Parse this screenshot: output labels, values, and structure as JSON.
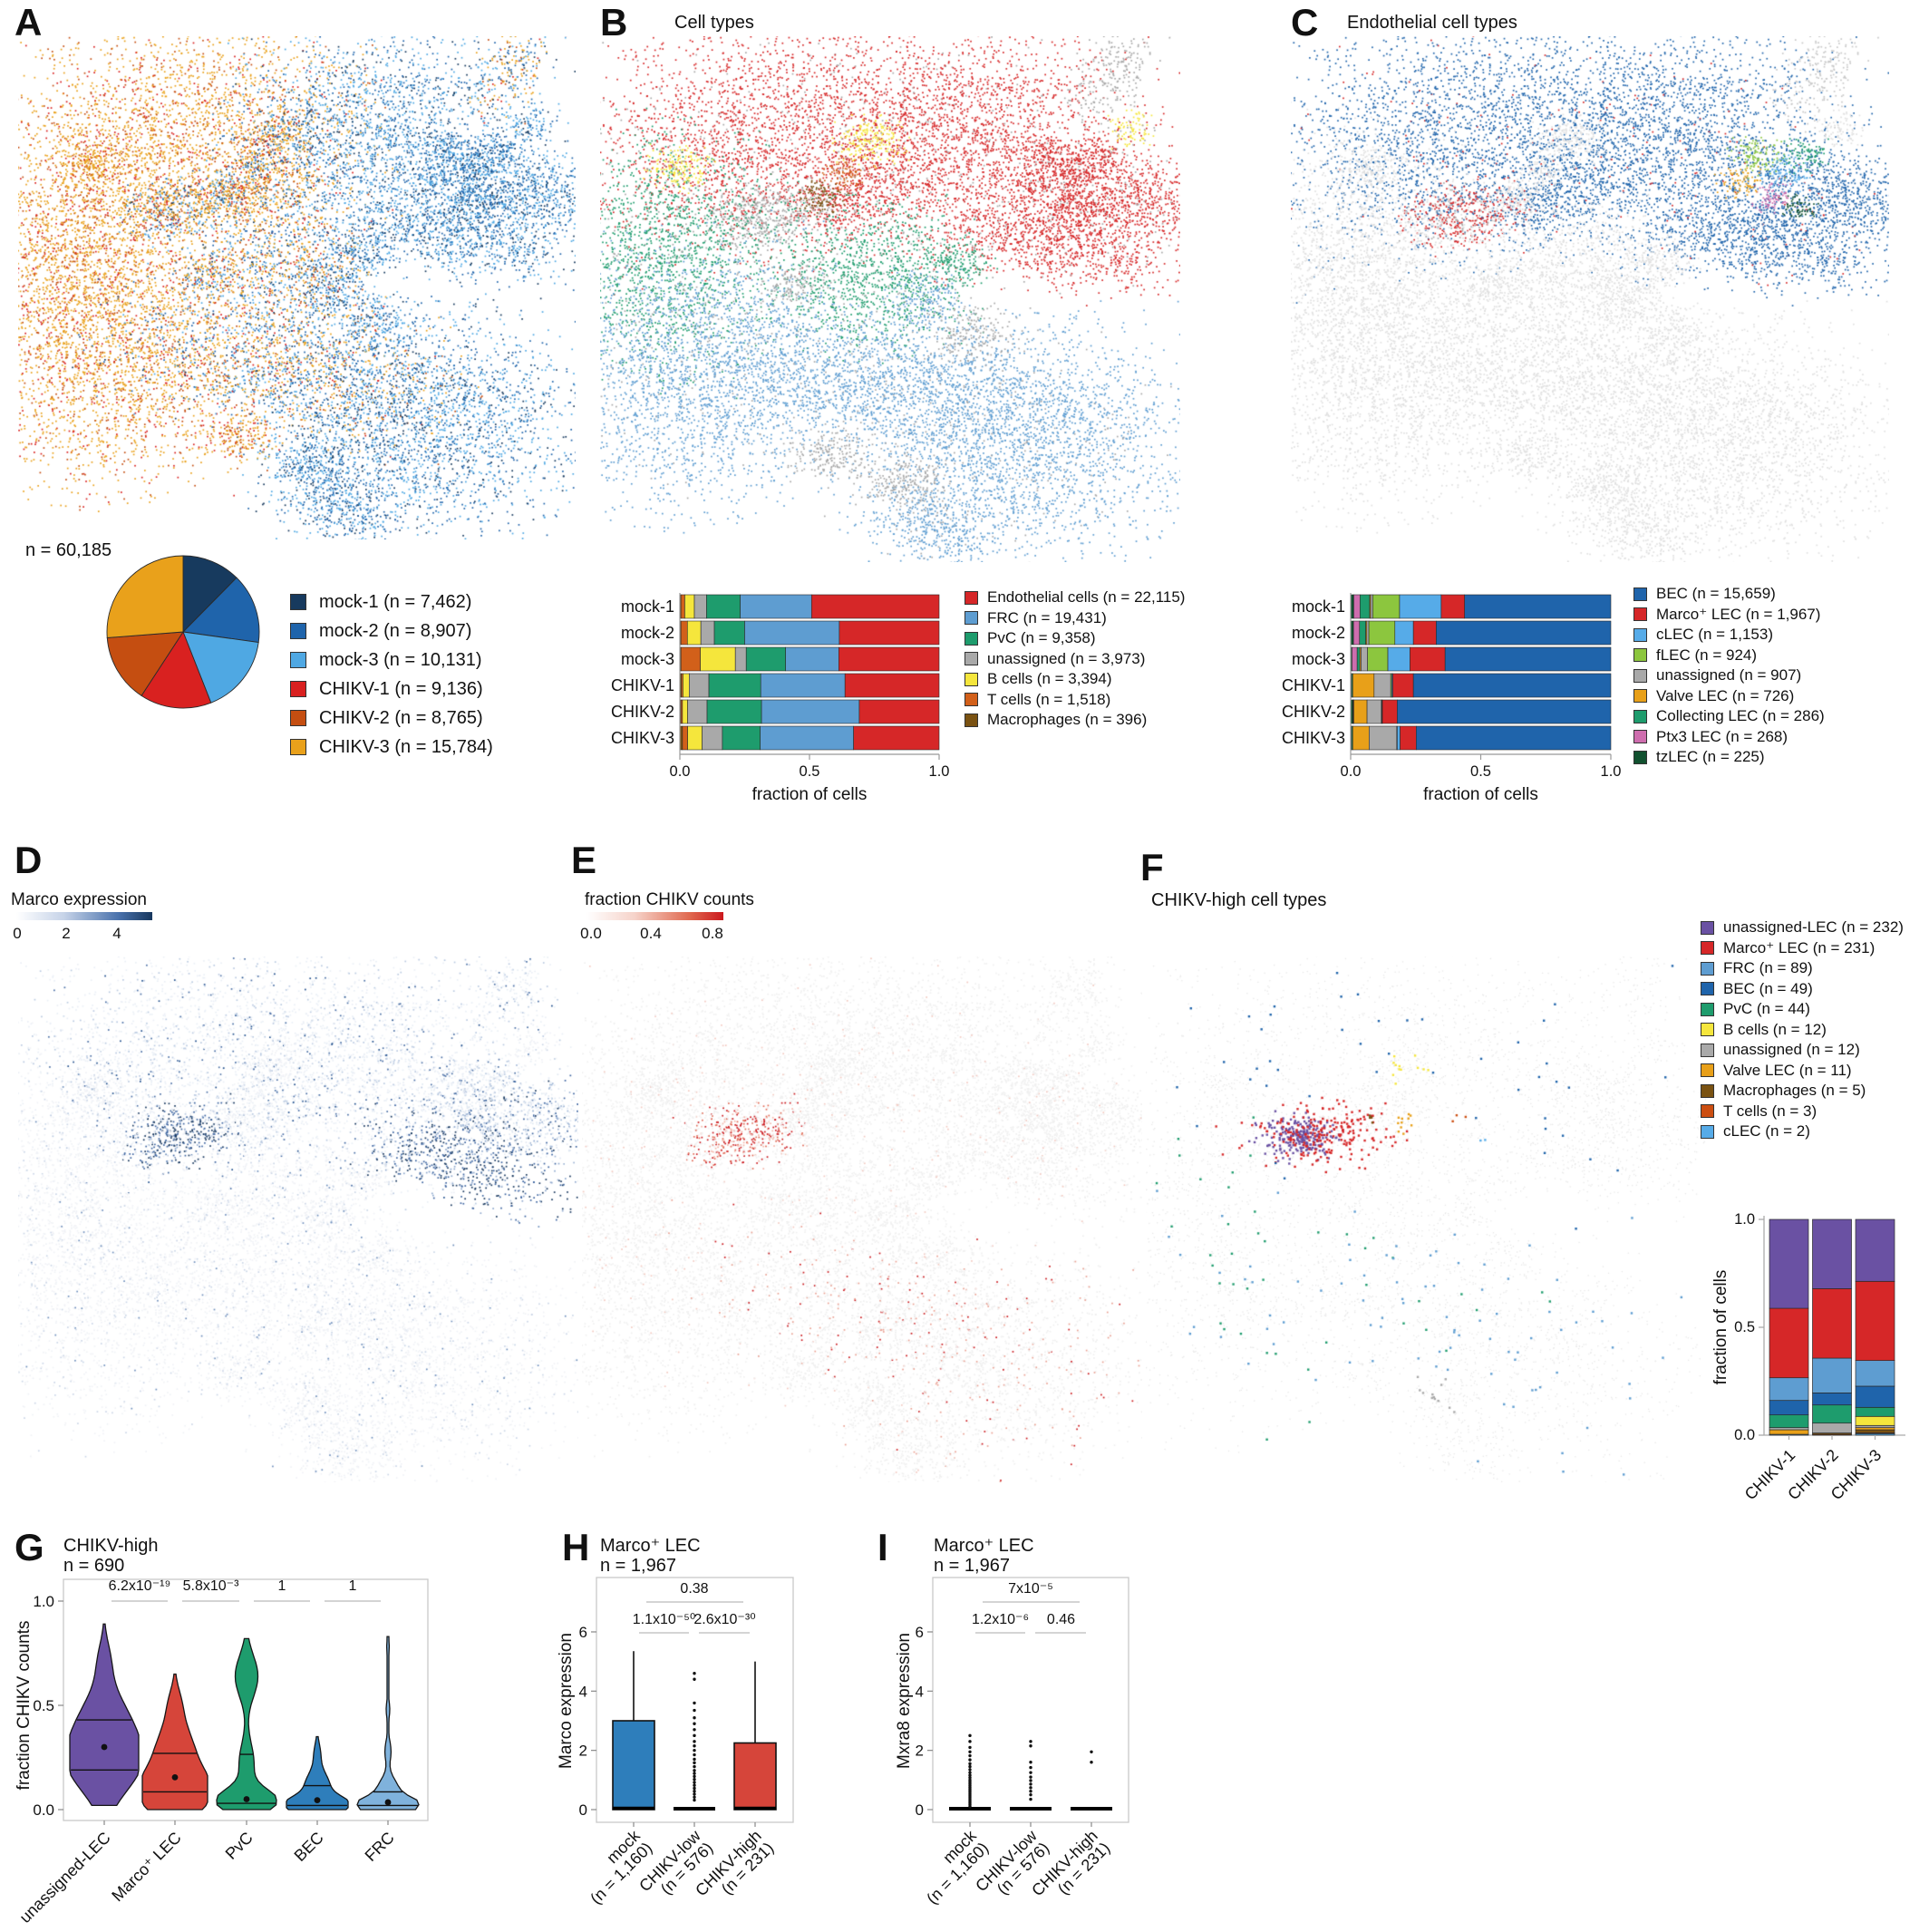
{
  "palette": {
    "mock1": "#173A5E",
    "mock2": "#1F64AB",
    "mock3": "#4FA8E3",
    "chikv1": "#D92120",
    "chikv2": "#C54E11",
    "chikv3": "#E9A11B",
    "endothelial": "#D62728",
    "frc": "#5E9DD1",
    "pvc": "#1E9C6D",
    "unassigned": "#A9A9A9",
    "bcells": "#F5E63C",
    "tcells": "#D2601A",
    "mac": "#7A5212",
    "bec": "#1F64AB",
    "marcoLEC": "#D62728",
    "clec": "#56ABE8",
    "flec": "#8CC63E",
    "valve": "#E8A019",
    "coll": "#1E9C6D",
    "ptx3": "#CE6DAE",
    "tz": "#11512F",
    "unassignedLEC": "#6A51A3",
    "exprBlue": "#17375E",
    "exprRed": "#CB181D",
    "boxBlue": "#2E7EBB",
    "boxRed": "#D6453A",
    "outline": "#E3E3E3"
  },
  "panels": {
    "A": {
      "letter": "A",
      "count_label": "n = 60,185"
    },
    "B": {
      "letter": "B",
      "title": "Cell types"
    },
    "C": {
      "letter": "C",
      "title": "Endothelial cell types"
    },
    "D": {
      "letter": "D",
      "colorbar_title": "Marco expression"
    },
    "E": {
      "letter": "E",
      "colorbar_title": "fraction CHIKV counts"
    },
    "F": {
      "letter": "F",
      "title": "CHIKV-high cell types"
    },
    "G": {
      "letter": "G",
      "title": "CHIKV-high",
      "subtitle": "n = 690"
    },
    "H": {
      "letter": "H",
      "title": "Marco⁺ LEC",
      "subtitle": "n = 1,967"
    },
    "I": {
      "letter": "I",
      "title": "Marco⁺ LEC",
      "subtitle": "n = 1,967"
    }
  },
  "chart_data": [
    {
      "id": "A-pie",
      "type": "pie",
      "title": "n = 60,185",
      "total": 60185,
      "labels": [
        "mock-1",
        "mock-2",
        "mock-3",
        "CHIKV-1",
        "CHIKV-2",
        "CHIKV-3"
      ],
      "values": [
        7462,
        8907,
        10131,
        9136,
        8765,
        15784
      ],
      "colors": [
        "#173A5E",
        "#1F64AB",
        "#4FA8E3",
        "#D92120",
        "#C54E11",
        "#E9A11B"
      ],
      "legend": [
        {
          "label": "mock-1 (n = 7,462)",
          "color": "#173A5E"
        },
        {
          "label": "mock-2 (n = 8,907)",
          "color": "#1F64AB"
        },
        {
          "label": "mock-3 (n = 10,131)",
          "color": "#4FA8E3"
        },
        {
          "label": "CHIKV-1 (n = 9,136)",
          "color": "#D92120"
        },
        {
          "label": "CHIKV-2 (n = 8,765)",
          "color": "#C54E11"
        },
        {
          "label": "CHIKV-3 (n = 15,784)",
          "color": "#E9A11B"
        }
      ]
    },
    {
      "id": "B-bars",
      "type": "bar",
      "orientation": "horizontal",
      "stacked": true,
      "categories": [
        "mock-1",
        "mock-2",
        "mock-3",
        "CHIKV-1",
        "CHIKV-2",
        "CHIKV-3"
      ],
      "xlabel": "fraction of cells",
      "xticks": [
        "0.0",
        "0.5",
        "1.0"
      ],
      "xlim": [
        0,
        1
      ],
      "series": [
        {
          "name": "Macrophages",
          "color": "#7A5212",
          "values": [
            0.004,
            0.004,
            0.004,
            0.006,
            0.004,
            0.01
          ]
        },
        {
          "name": "T cells",
          "color": "#D2601A",
          "values": [
            0.015,
            0.025,
            0.075,
            0.006,
            0.006,
            0.02
          ]
        },
        {
          "name": "B cells",
          "color": "#F5E63C",
          "values": [
            0.037,
            0.052,
            0.135,
            0.024,
            0.02,
            0.056
          ]
        },
        {
          "name": "unassigned",
          "color": "#A9A9A9",
          "values": [
            0.047,
            0.052,
            0.042,
            0.076,
            0.075,
            0.078
          ]
        },
        {
          "name": "PvC",
          "color": "#1E9C6D",
          "values": [
            0.13,
            0.117,
            0.152,
            0.2,
            0.21,
            0.146
          ]
        },
        {
          "name": "FRC",
          "color": "#5E9DD1",
          "values": [
            0.275,
            0.365,
            0.205,
            0.325,
            0.377,
            0.36
          ]
        },
        {
          "name": "Endothelial cells",
          "color": "#D62728",
          "values": [
            0.492,
            0.385,
            0.387,
            0.363,
            0.308,
            0.33
          ]
        }
      ],
      "legend": [
        {
          "label": "Endothelial cells (n = 22,115)",
          "color": "#D62728"
        },
        {
          "label": "FRC (n = 19,431)",
          "color": "#5E9DD1"
        },
        {
          "label": "PvC (n = 9,358)",
          "color": "#1E9C6D"
        },
        {
          "label": "unassigned (n = 3,973)",
          "color": "#A9A9A9"
        },
        {
          "label": "B cells (n = 3,394)",
          "color": "#F5E63C"
        },
        {
          "label": "T cells (n = 1,518)",
          "color": "#D2601A"
        },
        {
          "label": "Macrophages (n = 396)",
          "color": "#7A5212"
        }
      ]
    },
    {
      "id": "C-bars",
      "type": "bar",
      "orientation": "horizontal",
      "stacked": true,
      "categories": [
        "mock-1",
        "mock-2",
        "mock-3",
        "CHIKV-1",
        "CHIKV-2",
        "CHIKV-3"
      ],
      "xlabel": "fraction of cells",
      "xticks": [
        "0.0",
        "0.5",
        "1.0"
      ],
      "xlim": [
        0,
        1
      ],
      "series": [
        {
          "name": "tzLEC",
          "color": "#11512F",
          "values": [
            0.012,
            0.011,
            0.005,
            0.002,
            0.008,
            0.002
          ]
        },
        {
          "name": "Ptx3 LEC",
          "color": "#CE6DAE",
          "values": [
            0.024,
            0.023,
            0.02,
            0.002,
            0.002,
            0.002
          ]
        },
        {
          "name": "Collecting LEC",
          "color": "#1E9C6D",
          "values": [
            0.037,
            0.024,
            0.01,
            0.004,
            0.002,
            0.004
          ]
        },
        {
          "name": "Valve LEC",
          "color": "#E8A019",
          "values": [
            0.004,
            0.004,
            0.005,
            0.082,
            0.051,
            0.063
          ]
        },
        {
          "name": "unassigned",
          "color": "#A9A9A9",
          "values": [
            0.008,
            0.008,
            0.025,
            0.064,
            0.055,
            0.106
          ]
        },
        {
          "name": "fLEC",
          "color": "#8CC63E",
          "values": [
            0.103,
            0.1,
            0.078,
            0.004,
            0.002,
            0.002
          ]
        },
        {
          "name": "cLEC",
          "color": "#56ABE8",
          "values": [
            0.16,
            0.071,
            0.085,
            0.004,
            0.002,
            0.011
          ]
        },
        {
          "name": "Marco⁺ LEC",
          "color": "#D62728",
          "values": [
            0.09,
            0.088,
            0.135,
            0.079,
            0.057,
            0.062
          ]
        },
        {
          "name": "BEC",
          "color": "#1F64AB",
          "values": [
            0.562,
            0.671,
            0.637,
            0.759,
            0.821,
            0.748
          ]
        }
      ],
      "legend": [
        {
          "label": "BEC (n = 15,659)",
          "color": "#1F64AB"
        },
        {
          "label": "Marco⁺ LEC (n = 1,967)",
          "color": "#D62728"
        },
        {
          "label": "cLEC (n = 1,153)",
          "color": "#56ABE8"
        },
        {
          "label": "fLEC (n = 924)",
          "color": "#8CC63E"
        },
        {
          "label": "unassigned (n = 907)",
          "color": "#A9A9A9"
        },
        {
          "label": "Valve LEC (n = 726)",
          "color": "#E8A019"
        },
        {
          "label": "Collecting LEC (n = 286)",
          "color": "#1E9C6D"
        },
        {
          "label": "Ptx3 LEC (n = 268)",
          "color": "#CE6DAE"
        },
        {
          "label": "tzLEC (n = 225)",
          "color": "#11512F"
        }
      ]
    },
    {
      "id": "D-umap",
      "type": "scatter",
      "title": "Marco expression",
      "colorbar": {
        "ticks": [
          "0",
          "2",
          "4"
        ],
        "gradient": [
          "#FFFFFF",
          "#C6D3E8",
          "#4A72AC",
          "#17375E"
        ]
      }
    },
    {
      "id": "E-umap",
      "type": "scatter",
      "title": "fraction CHIKV counts",
      "colorbar": {
        "ticks": [
          "0.0",
          "0.4",
          "0.8"
        ],
        "gradient": [
          "#FFFFFF",
          "#F6D3CA",
          "#E06A50",
          "#CB181D"
        ]
      }
    },
    {
      "id": "F-bars",
      "type": "bar",
      "orientation": "vertical",
      "stacked": true,
      "categories": [
        "CHIKV-1",
        "CHIKV-2",
        "CHIKV-3"
      ],
      "ylabel": "fraction of cells",
      "yticks": [
        "1.0",
        "0.5",
        "0.0"
      ],
      "ylim": [
        0,
        1
      ],
      "series": [
        {
          "name": "cLEC",
          "color": "#56ABE8",
          "values": [
            0.004,
            0.0,
            0.007
          ]
        },
        {
          "name": "T cells",
          "color": "#CC4E11",
          "values": [
            0.0,
            0.004,
            0.004
          ]
        },
        {
          "name": "Macrophages",
          "color": "#7A5212",
          "values": [
            0.0,
            0.006,
            0.014
          ]
        },
        {
          "name": "Valve LEC",
          "color": "#E8A019",
          "values": [
            0.021,
            0.0,
            0.01
          ]
        },
        {
          "name": "unassigned",
          "color": "#A9A9A9",
          "values": [
            0.01,
            0.046,
            0.01
          ]
        },
        {
          "name": "B cells",
          "color": "#F5E63C",
          "values": [
            0.0,
            0.0,
            0.042
          ]
        },
        {
          "name": "PvC",
          "color": "#1E9C6D",
          "values": [
            0.059,
            0.084,
            0.042
          ]
        },
        {
          "name": "BEC",
          "color": "#1F64AB",
          "values": [
            0.067,
            0.056,
            0.098
          ]
        },
        {
          "name": "FRC",
          "color": "#5E9DD1",
          "values": [
            0.105,
            0.161,
            0.119
          ]
        },
        {
          "name": "Marco⁺ LEC",
          "color": "#D62728",
          "values": [
            0.322,
            0.322,
            0.367
          ]
        },
        {
          "name": "unassigned-LEC",
          "color": "#6A51A3",
          "values": [
            0.412,
            0.321,
            0.287
          ]
        }
      ],
      "legend": [
        {
          "label": "unassigned-LEC (n = 232)",
          "color": "#6A51A3"
        },
        {
          "label": "Marco⁺ LEC (n = 231)",
          "color": "#D62728"
        },
        {
          "label": "FRC (n = 89)",
          "color": "#5E9DD1"
        },
        {
          "label": "BEC (n = 49)",
          "color": "#1F64AB"
        },
        {
          "label": "PvC (n = 44)",
          "color": "#1E9C6D"
        },
        {
          "label": "B cells (n = 12)",
          "color": "#F5E63C"
        },
        {
          "label": "unassigned (n = 12)",
          "color": "#A9A9A9"
        },
        {
          "label": "Valve LEC (n = 11)",
          "color": "#E8A019"
        },
        {
          "label": "Macrophages (n = 5)",
          "color": "#7A5212"
        },
        {
          "label": "T cells (n = 3)",
          "color": "#CC4E11"
        },
        {
          "label": "cLEC (n = 2)",
          "color": "#56ABE8"
        }
      ]
    },
    {
      "id": "G-violins",
      "type": "violin",
      "title": "CHIKV-high",
      "subtitle": "n = 690",
      "ylabel": "fraction CHIKV counts",
      "yticks": [
        "1.0",
        "0.5",
        "0.0"
      ],
      "ylim": [
        0,
        1.1
      ],
      "categories": [
        "unassigned-LEC",
        "Marco⁺ LEC",
        "PvC",
        "BEC",
        "FRC"
      ],
      "violins": [
        {
          "label": "unassigned-LEC",
          "color": "#6A51A3",
          "min": 0.02,
          "max": 0.89,
          "q1": 0.19,
          "q3": 0.43,
          "mean": 0.3
        },
        {
          "label": "Marco⁺ LEC",
          "color": "#D6453A",
          "min": 0.0,
          "max": 0.65,
          "q1": 0.085,
          "q3": 0.27,
          "mean": 0.155
        },
        {
          "label": "PvC",
          "color": "#1E9C6D",
          "min": 0.0,
          "max": 0.82,
          "q1": 0.03,
          "q3": 0.265,
          "mean": 0.05
        },
        {
          "label": "BEC",
          "color": "#2E7EBB",
          "min": 0.0,
          "max": 0.35,
          "q1": 0.02,
          "q3": 0.115,
          "mean": 0.045
        },
        {
          "label": "FRC",
          "color": "#7FB2DC",
          "min": 0.0,
          "max": 0.83,
          "q1": 0.02,
          "q3": 0.085,
          "mean": 0.035
        }
      ],
      "pvalues": [
        "6.2x10⁻¹⁹",
        "5.8x10⁻³",
        "1",
        "1"
      ]
    },
    {
      "id": "H-box",
      "type": "box",
      "title": "Marco⁺ LEC",
      "subtitle": "n = 1,967",
      "ylabel": "Marco expression",
      "yticks": [
        "0",
        "2",
        "4",
        "6"
      ],
      "ylim": [
        0,
        7.6
      ],
      "groups": [
        {
          "label": [
            "mock",
            "(n = 1,160)"
          ],
          "color": "#2E7EBB",
          "flat": false,
          "q0": 0,
          "median": 0.05,
          "q3": 3.0,
          "whisker_high": 5.35,
          "outliers": []
        },
        {
          "label": [
            "CHIKV-low",
            "(n = 576)"
          ],
          "color": "#000000",
          "flat": true,
          "outliers": [
            0.32,
            0.42,
            0.52,
            0.62,
            0.72,
            0.82,
            0.92,
            1.02,
            1.12,
            1.22,
            1.32,
            1.45,
            1.58,
            1.7,
            1.85,
            2.0,
            2.15,
            2.3,
            2.5,
            2.7,
            2.9,
            3.1,
            3.35,
            3.6,
            4.4,
            4.6
          ]
        },
        {
          "label": [
            "CHIKV-high",
            "(n = 231)"
          ],
          "color": "#D6453A",
          "flat": false,
          "q0": 0,
          "median": 0.05,
          "q3": 2.25,
          "whisker_high": 5.0,
          "outliers": []
        }
      ],
      "pvalues": {
        "top": "0.38",
        "left": "1.1x10⁻⁵⁰",
        "right": "2.6x10⁻³⁰"
      }
    },
    {
      "id": "I-box",
      "type": "box",
      "title": "Marco⁺ LEC",
      "subtitle": "n = 1,967",
      "ylabel": "Mxra8 expression",
      "yticks": [
        "0",
        "2",
        "4",
        "6"
      ],
      "ylim": [
        0,
        7.6
      ],
      "groups": [
        {
          "label": [
            "mock",
            "(n = 1,160)"
          ],
          "color": "#000000",
          "flat": true,
          "outliers": [
            0.1,
            0.16,
            0.22,
            0.28,
            0.34,
            0.4,
            0.46,
            0.52,
            0.58,
            0.64,
            0.7,
            0.76,
            0.82,
            0.88,
            0.94,
            1.0,
            1.08,
            1.16,
            1.25,
            1.35,
            1.45,
            1.55,
            1.68,
            1.82,
            1.95,
            2.1,
            2.3,
            2.5
          ]
        },
        {
          "label": [
            "CHIKV-low",
            "(n = 576)"
          ],
          "color": "#000000",
          "flat": true,
          "outliers": [
            0.35,
            0.5,
            0.62,
            0.74,
            0.86,
            0.98,
            1.1,
            1.25,
            1.42,
            1.6,
            2.15,
            2.3
          ]
        },
        {
          "label": [
            "CHIKV-high",
            "(n = 231)"
          ],
          "color": "#000000",
          "flat": true,
          "outliers": [
            1.6,
            1.95
          ]
        }
      ],
      "pvalues": {
        "top": "7x10⁻⁵",
        "left": "1.2x10⁻⁶",
        "right": "0.46"
      }
    }
  ]
}
